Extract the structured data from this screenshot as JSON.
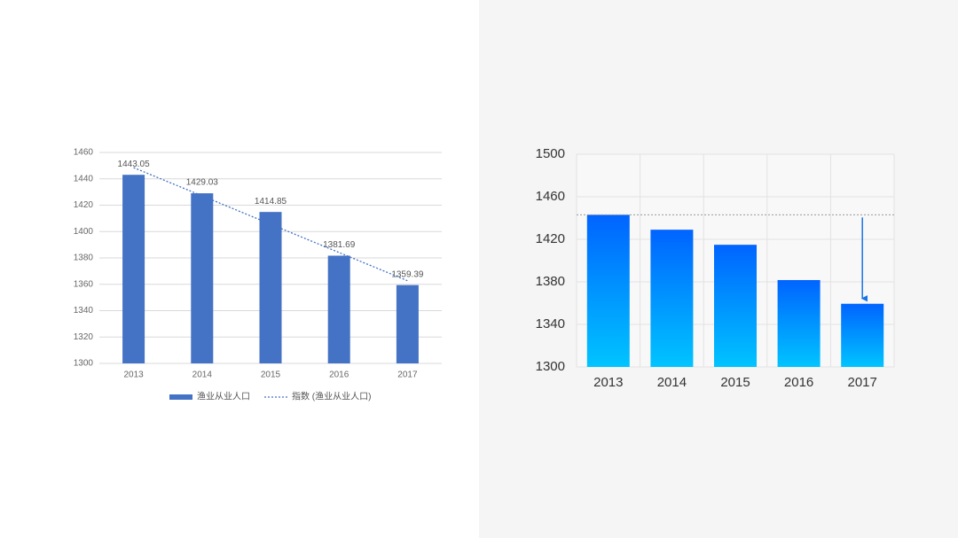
{
  "chart_data": [
    {
      "type": "bar",
      "categories": [
        "2013",
        "2014",
        "2015",
        "2016",
        "2017"
      ],
      "series": [
        {
          "name": "渔业从业人口",
          "color": "#4472c4",
          "values": [
            1443.05,
            1429.03,
            1414.85,
            1381.69,
            1359.39
          ]
        },
        {
          "name": "指数 (渔业从业人口)",
          "color": "#4472c4",
          "style": "dotted",
          "values": [
            1448.5,
            1427.1,
            1405.6,
            1384.1,
            1362.7
          ]
        }
      ],
      "ylim": [
        1300,
        1460
      ],
      "yticks": [
        1300,
        1320,
        1340,
        1360,
        1380,
        1400,
        1420,
        1440,
        1460
      ],
      "grid": true,
      "data_labels": true,
      "legend": "bottom"
    },
    {
      "type": "bar",
      "categories": [
        "2013",
        "2014",
        "2015",
        "2016",
        "2017"
      ],
      "values": [
        1443.05,
        1429.03,
        1414.85,
        1381.69,
        1359.39
      ],
      "gradient": [
        "#0064ff",
        "#00c4ff"
      ],
      "ylim": [
        1300,
        1500
      ],
      "yticks": [
        1300,
        1340,
        1380,
        1420,
        1460,
        1500
      ],
      "grid": true
    }
  ]
}
